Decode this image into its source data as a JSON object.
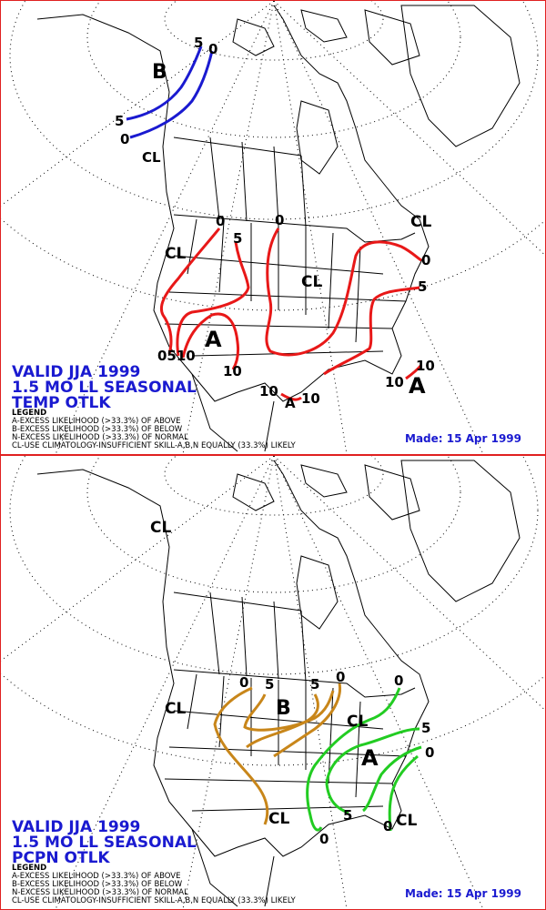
{
  "temp_panel": {
    "title_lines": [
      "VALID JJA 1999",
      "1.5 MO LL SEASONAL",
      "TEMP OTLK"
    ],
    "made": "Made: 15 Apr 1999",
    "map_labels": {
      "B": "B",
      "CL_alaska": "CL",
      "CL_west": "CL",
      "CL_central": "CL",
      "CL_ne": "CL",
      "A_sw": "A",
      "A_se": "A",
      "A_texas": "A",
      "b_5": "5",
      "b_0": "0",
      "b_5_left": "5",
      "b_0_left": "0",
      "r_0_nw": "0",
      "r_5_nw": "5",
      "r_0_plains": "0",
      "r_0_ne": "0",
      "r_5_ne": "5",
      "r_0510_ca": "0510",
      "r_10_sw": "10",
      "r_10_tx": "10",
      "r_10_tx2": "10",
      "r_10_fl": "10",
      "r_10_fl2": "10"
    }
  },
  "pcpn_panel": {
    "title_lines": [
      "VALID JJA 1999",
      "1.5 MO LL SEASONAL",
      "PCPN OTLK"
    ],
    "made": "Made: 15 Apr 1999",
    "map_labels": {
      "CL_alaska": "CL",
      "CL_west": "CL",
      "CL_gl": "CL",
      "CL_south": "CL",
      "CL_se": "CL",
      "B": "B",
      "A": "A",
      "o_0": "0",
      "o_5": "5",
      "o_5b": "5",
      "o_0b": "0",
      "g_0_ne": "0",
      "g_5_ne": "5",
      "g_0_ne2": "0",
      "g_0_gulf": "0",
      "g_5_fl": "5",
      "g_0_fl": "0"
    }
  },
  "legend": {
    "heading": "LEGEND",
    "lines": [
      "A-EXCESS LIKELIHOOD (>33.3%) OF ABOVE",
      "B-EXCESS LIKELIHOOD (>33.3%) OF BELOW",
      "N-EXCESS LIKELIHOOD (>33.3%) OF NORMAL",
      "CL-USE CLIMATOLOGY-INSUFFICIENT SKILL-A,B,N EQUALLY (33.3%) LIKELY"
    ]
  },
  "colors": {
    "border": "#e02020",
    "title": "#1a1ad0",
    "temp_below": "#1a1ad0",
    "temp_above": "#e81818",
    "pcpn_below": "#c8861a",
    "pcpn_above": "#22cc22"
  }
}
